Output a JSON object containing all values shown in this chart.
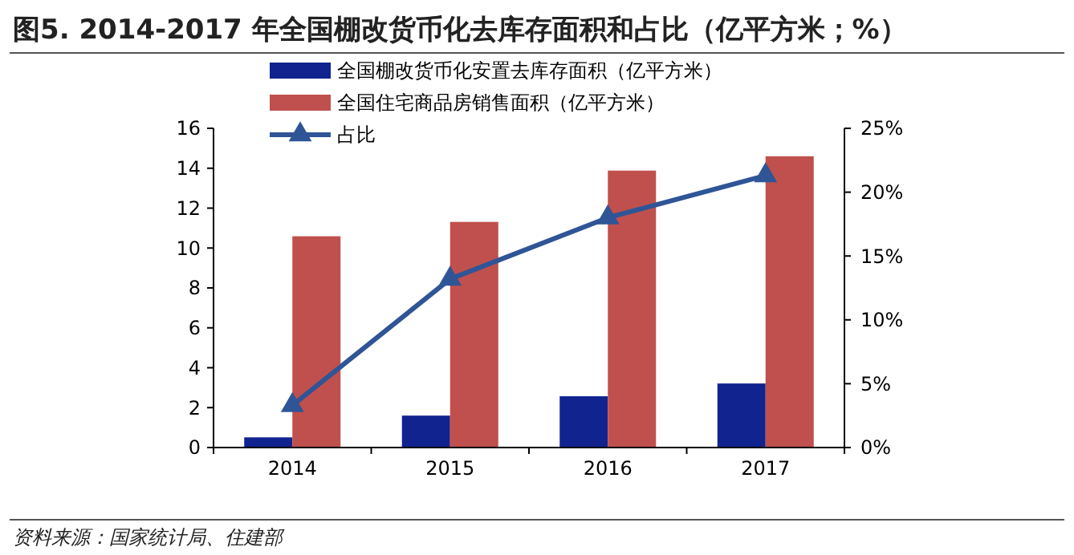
{
  "chart_data": {
    "type": "bar",
    "title": "图5. 2014-2017 年全国棚改货币化去库存面积和占比（亿平方米；%）",
    "categories": [
      "2014",
      "2015",
      "2016",
      "2017"
    ],
    "series": [
      {
        "name": "全国棚改货币化安置去库存面积（亿平方米）",
        "color": "#10238f",
        "values": [
          0.51,
          1.6,
          2.57,
          3.21
        ]
      },
      {
        "name": "全国住宅商品房销售面积（亿平方米）",
        "color": "#c0504d",
        "values": [
          10.59,
          11.31,
          13.88,
          14.6
        ]
      },
      {
        "name": "占比",
        "type": "line",
        "axis": "y2",
        "color": "#2f5597",
        "marker": "triangle",
        "values": [
          3.3,
          13.2,
          18.0,
          21.3
        ]
      }
    ],
    "ylim": [
      0,
      16
    ],
    "yticks": [
      0,
      2,
      4,
      6,
      8,
      10,
      12,
      14,
      16
    ],
    "y2lim": [
      0,
      25
    ],
    "y2ticks": [
      {
        "value": 0,
        "label": "0%"
      },
      {
        "value": 5,
        "label": "5%"
      },
      {
        "value": 10,
        "label": "10%"
      },
      {
        "value": 15,
        "label": "15%"
      },
      {
        "value": 20,
        "label": "20%"
      },
      {
        "value": 25,
        "label": "25%"
      }
    ],
    "grid": false,
    "legend": "top",
    "annotations": [
      "资料来源：国家统计局、住建部"
    ]
  }
}
